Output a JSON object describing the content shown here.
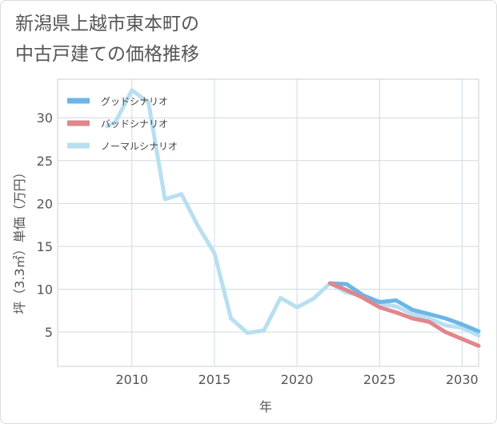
{
  "chart_data": {
    "type": "line",
    "title_lines": [
      "新潟県上越市東本町の",
      "中古戸建ての価格推移"
    ],
    "xlabel": "年",
    "ylabel": "坪（3.3㎡）単価（万円）",
    "xlim": [
      2005.5,
      2031
    ],
    "ylim": [
      1,
      34.5
    ],
    "x_ticks": [
      2010,
      2015,
      2020,
      2025,
      2030
    ],
    "y_ticks": [
      5,
      10,
      15,
      20,
      25,
      30
    ],
    "grid": true,
    "legend_position": "top-left",
    "series": [
      {
        "name": "グッドシナリオ",
        "color": "#6bb5e8",
        "points": [
          [
            2022,
            10.7
          ],
          [
            2023,
            10.6
          ],
          [
            2024,
            9.3
          ],
          [
            2025,
            8.5
          ],
          [
            2026,
            8.7
          ],
          [
            2027,
            7.6
          ],
          [
            2028,
            7.1
          ],
          [
            2029,
            6.6
          ],
          [
            2030,
            5.9
          ],
          [
            2031,
            5.1
          ]
        ]
      },
      {
        "name": "バッドシナリオ",
        "color": "#e0868c",
        "points": [
          [
            2022,
            10.7
          ],
          [
            2023,
            9.9
          ],
          [
            2024,
            9.0
          ],
          [
            2025,
            7.9
          ],
          [
            2026,
            7.3
          ],
          [
            2027,
            6.6
          ],
          [
            2028,
            6.2
          ],
          [
            2029,
            5.0
          ],
          [
            2030,
            4.2
          ],
          [
            2031,
            3.4
          ]
        ]
      },
      {
        "name": "ノーマルシナリオ",
        "color": "#b8dff0",
        "points": [
          [
            2008.5,
            29.0
          ],
          [
            2009,
            29.5
          ],
          [
            2010,
            33.2
          ],
          [
            2011,
            31.8
          ],
          [
            2012,
            20.5
          ],
          [
            2013,
            21.1
          ],
          [
            2014,
            17.4
          ],
          [
            2015,
            14.2
          ],
          [
            2016,
            6.6
          ],
          [
            2017,
            4.9
          ],
          [
            2018,
            5.2
          ],
          [
            2019,
            9.0
          ],
          [
            2020,
            7.9
          ],
          [
            2021,
            8.9
          ],
          [
            2022,
            10.7
          ],
          [
            2023,
            9.6
          ],
          [
            2024,
            9.3
          ],
          [
            2025,
            8.3
          ],
          [
            2026,
            8.0
          ],
          [
            2027,
            7.1
          ],
          [
            2028,
            6.6
          ],
          [
            2029,
            5.8
          ],
          [
            2030,
            5.5
          ],
          [
            2031,
            4.6
          ]
        ]
      }
    ]
  }
}
